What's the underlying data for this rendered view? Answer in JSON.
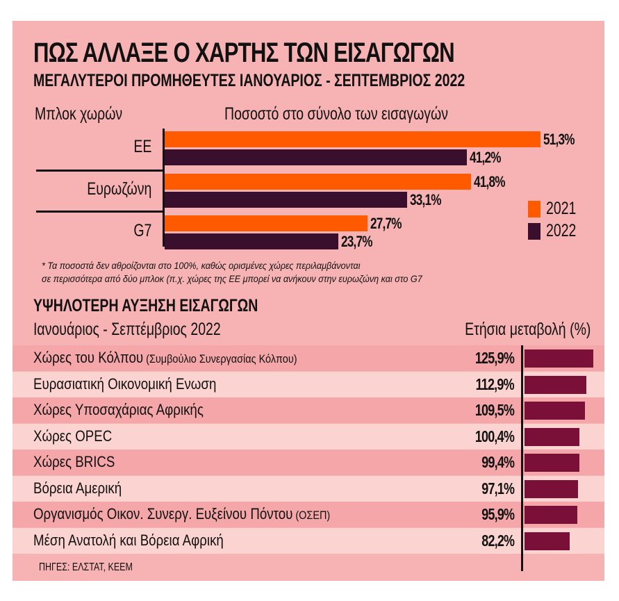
{
  "title": "ΠΩΣ ΑΛΛΑΞΕ Ο ΧΑΡΤΗΣ ΤΩΝ ΕΙΣΑΓΩΓΩΝ",
  "subtitle": "ΜΕΓΑΛΥΤΕΡΟΙ ΠΡΟΜΗΘΕΥΤΕΣ ΙΑΝΟΥΑΡΙΟΣ - ΣΕΠΤΕΜΒΡΙΟΣ 2022",
  "colors": {
    "background": "#f7b3b4",
    "y2021": "#ff5a00",
    "y2022": "#3a0f2e",
    "growth": "#7a0f38",
    "row_dark": "#f4a6a9",
    "row_light": "#fbd3d0"
  },
  "chart_data": [
    {
      "type": "bar",
      "orientation": "horizontal",
      "xlabel_left": "Μπλοκ χωρών",
      "xlabel": "Ποσοστό στο σύνολο των εισαγωγών",
      "categories": [
        "ΕΕ",
        "Ευρωζώνη",
        "G7"
      ],
      "series": [
        {
          "name": "2021",
          "values": [
            51.3,
            41.8,
            27.7
          ],
          "labels": [
            "51,3%",
            "41,8%",
            "27,7%"
          ]
        },
        {
          "name": "2022",
          "values": [
            41.2,
            33.1,
            23.7
          ],
          "labels": [
            "41,2%",
            "33,1%",
            "23,7%"
          ]
        }
      ],
      "legend": "right",
      "unit": "%"
    },
    {
      "type": "bar",
      "orientation": "horizontal",
      "title": "ΥΨΗΛΟΤΕΡΗ ΑΥΞΗΣΗ ΕΙΣΑΓΩΓΩΝ",
      "subtitle": "Ιανουάριος - Σεπτέμβριος 2022",
      "ylabel": "Ετήσια μεταβολή (%)",
      "categories": [
        {
          "name": "Χώρες του Κόλπου",
          "note": "(Συμβούλιο Συνεργασίας Κόλπου)"
        },
        {
          "name": "Ευρασιατική Οικονομική Ενωση",
          "note": ""
        },
        {
          "name": "Χώρες Υποσαχάριας Αφρικής",
          "note": ""
        },
        {
          "name": "Χώρες OPEC",
          "note": ""
        },
        {
          "name": "Χώρες BRICS",
          "note": ""
        },
        {
          "name": "Βόρεια Αμερική",
          "note": ""
        },
        {
          "name": "Οργανισμός Οικον. Συνεργ. Ευξείνου Πόντου",
          "note": "(ΟΣΕΠ)"
        },
        {
          "name": "Μέση Ανατολή και Βόρεια Αφρική",
          "note": ""
        }
      ],
      "values": [
        125.9,
        112.9,
        109.5,
        100.4,
        99.4,
        97.1,
        95.9,
        82.2
      ],
      "labels": [
        "125,9%",
        "112,9%",
        "109,5%",
        "100,4%",
        "99,4%",
        "97,1%",
        "95,9%",
        "82,2%"
      ]
    }
  ],
  "footnote_1": "* Τα ποσοστά δεν αθροίζονται στο 100%, καθώς ορισμένες χώρες περιλαμβάνονται",
  "footnote_2": "σε περισσότερα από δύο μπλοκ (π.χ. χώρες της ΕΕ μπορεί να ανήκουν στην ευρωζώνη και στο G7",
  "sources": "ΠΗΓΕΣ: ΕΛΣΤΑΤ, ΚΕΕΜ"
}
